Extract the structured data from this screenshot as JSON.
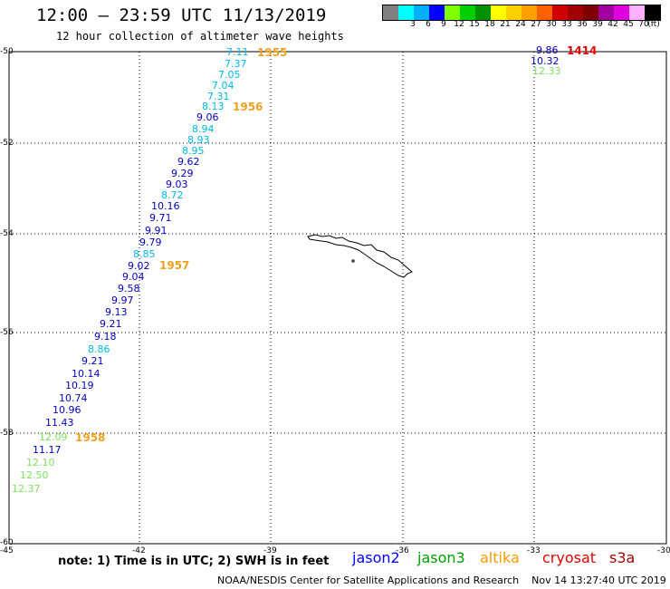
{
  "header": {
    "title": "12:00 – 23:59 UTC 11/13/2019",
    "subtitle": "12 hour collection of altimeter wave heights"
  },
  "legend": {
    "unit": "(ft)",
    "colors": [
      "#808080",
      "#00ffff",
      "#00b0ff",
      "#0000ff",
      "#7fff00",
      "#00d000",
      "#009000",
      "#ffff00",
      "#ffd000",
      "#ffa000",
      "#ff6000",
      "#d00000",
      "#a00000",
      "#800000",
      "#a000a0",
      "#e000e0",
      "#ffb0ff",
      "#000000"
    ],
    "labels": [
      "3",
      "6",
      "9",
      "12",
      "15",
      "18",
      "21",
      "24",
      "27",
      "30",
      "33",
      "36",
      "39",
      "42",
      "45",
      "70"
    ]
  },
  "axes": {
    "lat_labels": [
      "-50",
      "-52",
      "-54",
      "-56",
      "-58",
      "-60"
    ],
    "lon_labels": [
      "-45",
      "-42",
      "-39",
      "-36",
      "-33",
      "-30"
    ]
  },
  "passes": [
    {
      "label": "1955",
      "color": "#f0a020"
    },
    {
      "label": "1956",
      "color": "#f0a020"
    },
    {
      "label": "1957",
      "color": "#f0a020"
    },
    {
      "label": "1958",
      "color": "#f0a020"
    },
    {
      "label": "1414",
      "color": "#e00000"
    }
  ],
  "observations": [
    {
      "value": "7.11",
      "color": "#00b8e8"
    },
    {
      "value": "7.37",
      "color": "#00b8e8"
    },
    {
      "value": "7.05",
      "color": "#00b8e8"
    },
    {
      "value": "7.04",
      "color": "#00b8e8"
    },
    {
      "value": "7.31",
      "color": "#00b8e8"
    },
    {
      "value": "8.13",
      "color": "#00b8e8"
    },
    {
      "value": "9.06",
      "color": "#0000c0"
    },
    {
      "value": "8.94",
      "color": "#00b8e8"
    },
    {
      "value": "8.93",
      "color": "#00b8e8"
    },
    {
      "value": "8.95",
      "color": "#00b8e8"
    },
    {
      "value": "9.62",
      "color": "#0000c0"
    },
    {
      "value": "9.29",
      "color": "#0000c0"
    },
    {
      "value": "9.03",
      "color": "#0000c0"
    },
    {
      "value": "8.72",
      "color": "#00b8e8"
    },
    {
      "value": "10.16",
      "color": "#0000c0"
    },
    {
      "value": "9.71",
      "color": "#0000c0"
    },
    {
      "value": "9.91",
      "color": "#0000c0"
    },
    {
      "value": "9.79",
      "color": "#0000c0"
    },
    {
      "value": "8.85",
      "color": "#00b8e8"
    },
    {
      "value": "9.02",
      "color": "#0000c0"
    },
    {
      "value": "9.04",
      "color": "#0000c0"
    },
    {
      "value": "9.58",
      "color": "#0000c0"
    },
    {
      "value": "9.97",
      "color": "#0000c0"
    },
    {
      "value": "9.13",
      "color": "#0000c0"
    },
    {
      "value": "9.21",
      "color": "#0000c0"
    },
    {
      "value": "9.18",
      "color": "#0000c0"
    },
    {
      "value": "8.86",
      "color": "#00b8e8"
    },
    {
      "value": "9.21",
      "color": "#0000c0"
    },
    {
      "value": "10.14",
      "color": "#0000c0"
    },
    {
      "value": "10.19",
      "color": "#0000c0"
    },
    {
      "value": "10.74",
      "color": "#0000c0"
    },
    {
      "value": "10.96",
      "color": "#0000c0"
    },
    {
      "value": "11.43",
      "color": "#0000c0"
    },
    {
      "value": "12.09",
      "color": "#80e060"
    },
    {
      "value": "11.17",
      "color": "#0000c0"
    },
    {
      "value": "12.10",
      "color": "#80e060"
    },
    {
      "value": "12.50",
      "color": "#80e060"
    },
    {
      "value": "12.37",
      "color": "#80e060"
    },
    {
      "value": "9.86",
      "color": "#0000c0"
    },
    {
      "value": "10.32",
      "color": "#0000c0"
    },
    {
      "value": "12.33",
      "color": "#80e060"
    }
  ],
  "footer": {
    "note": "note: 1) Time is in UTC; 2) SWH is in feet",
    "satellites": [
      {
        "name": "jason2",
        "color": "#0000ff"
      },
      {
        "name": "jason3",
        "color": "#00a000"
      },
      {
        "name": "altika",
        "color": "#ff9900"
      },
      {
        "name": "cryosat",
        "color": "#e00000"
      },
      {
        "name": "s3a",
        "color": "#a00000"
      }
    ],
    "credit": "NOAA/NESDIS Center for Satellite Applications and Research",
    "timestamp": "Nov 14 13:27:40 UTC 2019"
  }
}
